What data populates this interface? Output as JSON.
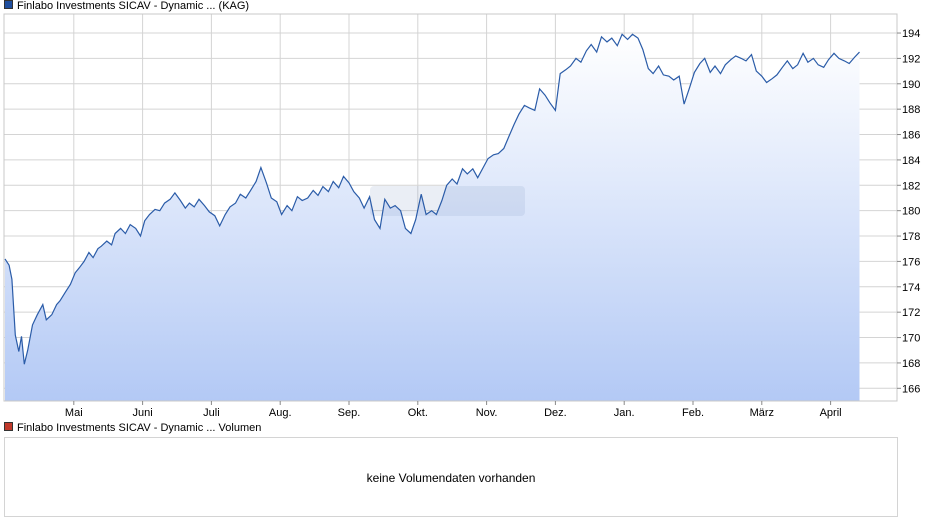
{
  "price_legend": {
    "text": "Finlabo Investments SICAV - Dynamic ... (KAG)",
    "color": "#1f4e9e"
  },
  "volume_legend": {
    "text": "Finlabo Investments SICAV - Dynamic ... Volumen",
    "color": "#c0392b"
  },
  "volume_panel": {
    "message": "keine Volumendaten vorhanden"
  },
  "colors": {
    "line": "#2b5ca8",
    "fill_top": "#ffffff",
    "fill_bottom": "#b3c9f5",
    "grid": "#d4d4d4"
  },
  "chart_data": {
    "type": "area",
    "title": "",
    "xlabel": "",
    "ylabel": "",
    "ylim": [
      165,
      195.5
    ],
    "grid": true,
    "y_axis_side": "right",
    "yticks": [
      166,
      168,
      170,
      172,
      174,
      176,
      178,
      180,
      182,
      184,
      186,
      188,
      190,
      192,
      194
    ],
    "xticks": [
      "Mai",
      "Juni",
      "Juli",
      "Aug.",
      "Sep.",
      "Okt.",
      "Nov.",
      "Dez.",
      "Jan.",
      "Feb.",
      "März",
      "April"
    ],
    "x_range": [
      0,
      12.45
    ],
    "series": [
      {
        "x": [
          0.0,
          0.06,
          0.1,
          0.15,
          0.2,
          0.24,
          0.28,
          0.33,
          0.4,
          0.47,
          0.55,
          0.6,
          0.68,
          0.75,
          0.8,
          0.88,
          0.95,
          1.02,
          1.08,
          1.15,
          1.22,
          1.28,
          1.35,
          1.4,
          1.48,
          1.55,
          1.6,
          1.68,
          1.75,
          1.82,
          1.9,
          1.97,
          2.03,
          2.1,
          2.18,
          2.25,
          2.32,
          2.4,
          2.47,
          2.55,
          2.62,
          2.68,
          2.75,
          2.82,
          2.9,
          2.97,
          3.05,
          3.12,
          3.2,
          3.27,
          3.35,
          3.42,
          3.5,
          3.57,
          3.65,
          3.72,
          3.8,
          3.87,
          3.95,
          4.02,
          4.1,
          4.17,
          4.25,
          4.32,
          4.4,
          4.48,
          4.55,
          4.62,
          4.7,
          4.77,
          4.85,
          4.92,
          5.0,
          5.07,
          5.15,
          5.22,
          5.3,
          5.37,
          5.45,
          5.52,
          5.6,
          5.67,
          5.75,
          5.82,
          5.9,
          5.97,
          6.05,
          6.12,
          6.2,
          6.27,
          6.35,
          6.42,
          6.5,
          6.57,
          6.65,
          6.72,
          6.8,
          6.87,
          6.95,
          7.02,
          7.1,
          7.17,
          7.25,
          7.32,
          7.4,
          7.47,
          7.55,
          7.62,
          7.7,
          7.77,
          7.85,
          7.92,
          8.0,
          8.07,
          8.15,
          8.22,
          8.3,
          8.37,
          8.45,
          8.52,
          8.6,
          8.67,
          8.75,
          8.82,
          8.9,
          8.97,
          9.05,
          9.12,
          9.2,
          9.27,
          9.35,
          9.42,
          9.5,
          9.57,
          9.65,
          9.72,
          9.8,
          9.87,
          9.95,
          10.02,
          10.1,
          10.17,
          10.25,
          10.32,
          10.4,
          10.47,
          10.55,
          10.62,
          10.7,
          10.77,
          10.85,
          10.92,
          11.0,
          11.07,
          11.15,
          11.22,
          11.3,
          11.37,
          11.45,
          11.52,
          11.6,
          11.67,
          11.75,
          11.82,
          11.9,
          11.97,
          12.05,
          12.12,
          12.2,
          12.27,
          12.35,
          12.42
        ],
        "y": [
          176.2,
          175.7,
          174.6,
          170.2,
          168.9,
          170.1,
          167.9,
          169.0,
          171.0,
          171.8,
          172.6,
          171.4,
          171.8,
          172.6,
          172.9,
          173.6,
          174.2,
          175.1,
          175.5,
          176.0,
          176.7,
          176.3,
          177.0,
          177.2,
          177.6,
          177.3,
          178.2,
          178.6,
          178.2,
          178.9,
          178.6,
          178.0,
          179.2,
          179.7,
          180.1,
          180.0,
          180.6,
          180.9,
          181.4,
          180.8,
          180.2,
          180.6,
          180.3,
          180.9,
          180.4,
          179.9,
          179.6,
          178.8,
          179.7,
          180.3,
          180.6,
          181.3,
          181.0,
          181.6,
          182.3,
          183.4,
          182.2,
          181.0,
          180.7,
          179.7,
          180.4,
          180.0,
          181.1,
          180.8,
          181.0,
          181.6,
          181.2,
          181.9,
          181.5,
          182.3,
          181.8,
          182.7,
          182.2,
          181.5,
          181.0,
          180.2,
          181.1,
          179.3,
          178.6,
          180.9,
          180.2,
          180.4,
          180.0,
          178.6,
          178.2,
          179.3,
          181.3,
          179.7,
          180.0,
          179.7,
          180.8,
          182.0,
          182.5,
          182.1,
          183.3,
          182.9,
          183.3,
          182.6,
          183.4,
          184.1,
          184.4,
          184.5,
          184.9,
          185.8,
          186.8,
          187.6,
          188.3,
          188.1,
          187.9,
          189.6,
          189.1,
          188.5,
          187.9,
          190.8,
          191.1,
          191.4,
          192.0,
          191.7,
          192.6,
          193.1,
          192.5,
          193.7,
          193.3,
          193.6,
          193.0,
          193.9,
          193.5,
          193.9,
          193.6,
          192.7,
          191.2,
          190.8,
          191.4,
          190.7,
          190.6,
          190.3,
          190.6,
          188.4,
          189.7,
          190.9,
          191.6,
          192.0,
          190.9,
          191.4,
          190.8,
          191.5,
          191.9,
          192.2,
          192.0,
          191.8,
          192.3,
          191.0,
          190.6,
          190.1,
          190.4,
          190.7,
          191.3,
          191.8,
          191.2,
          191.5,
          192.4,
          191.7,
          192.0,
          191.5,
          191.3,
          191.9,
          192.4,
          192.0,
          191.8,
          191.6,
          192.1,
          192.5
        ]
      }
    ]
  }
}
